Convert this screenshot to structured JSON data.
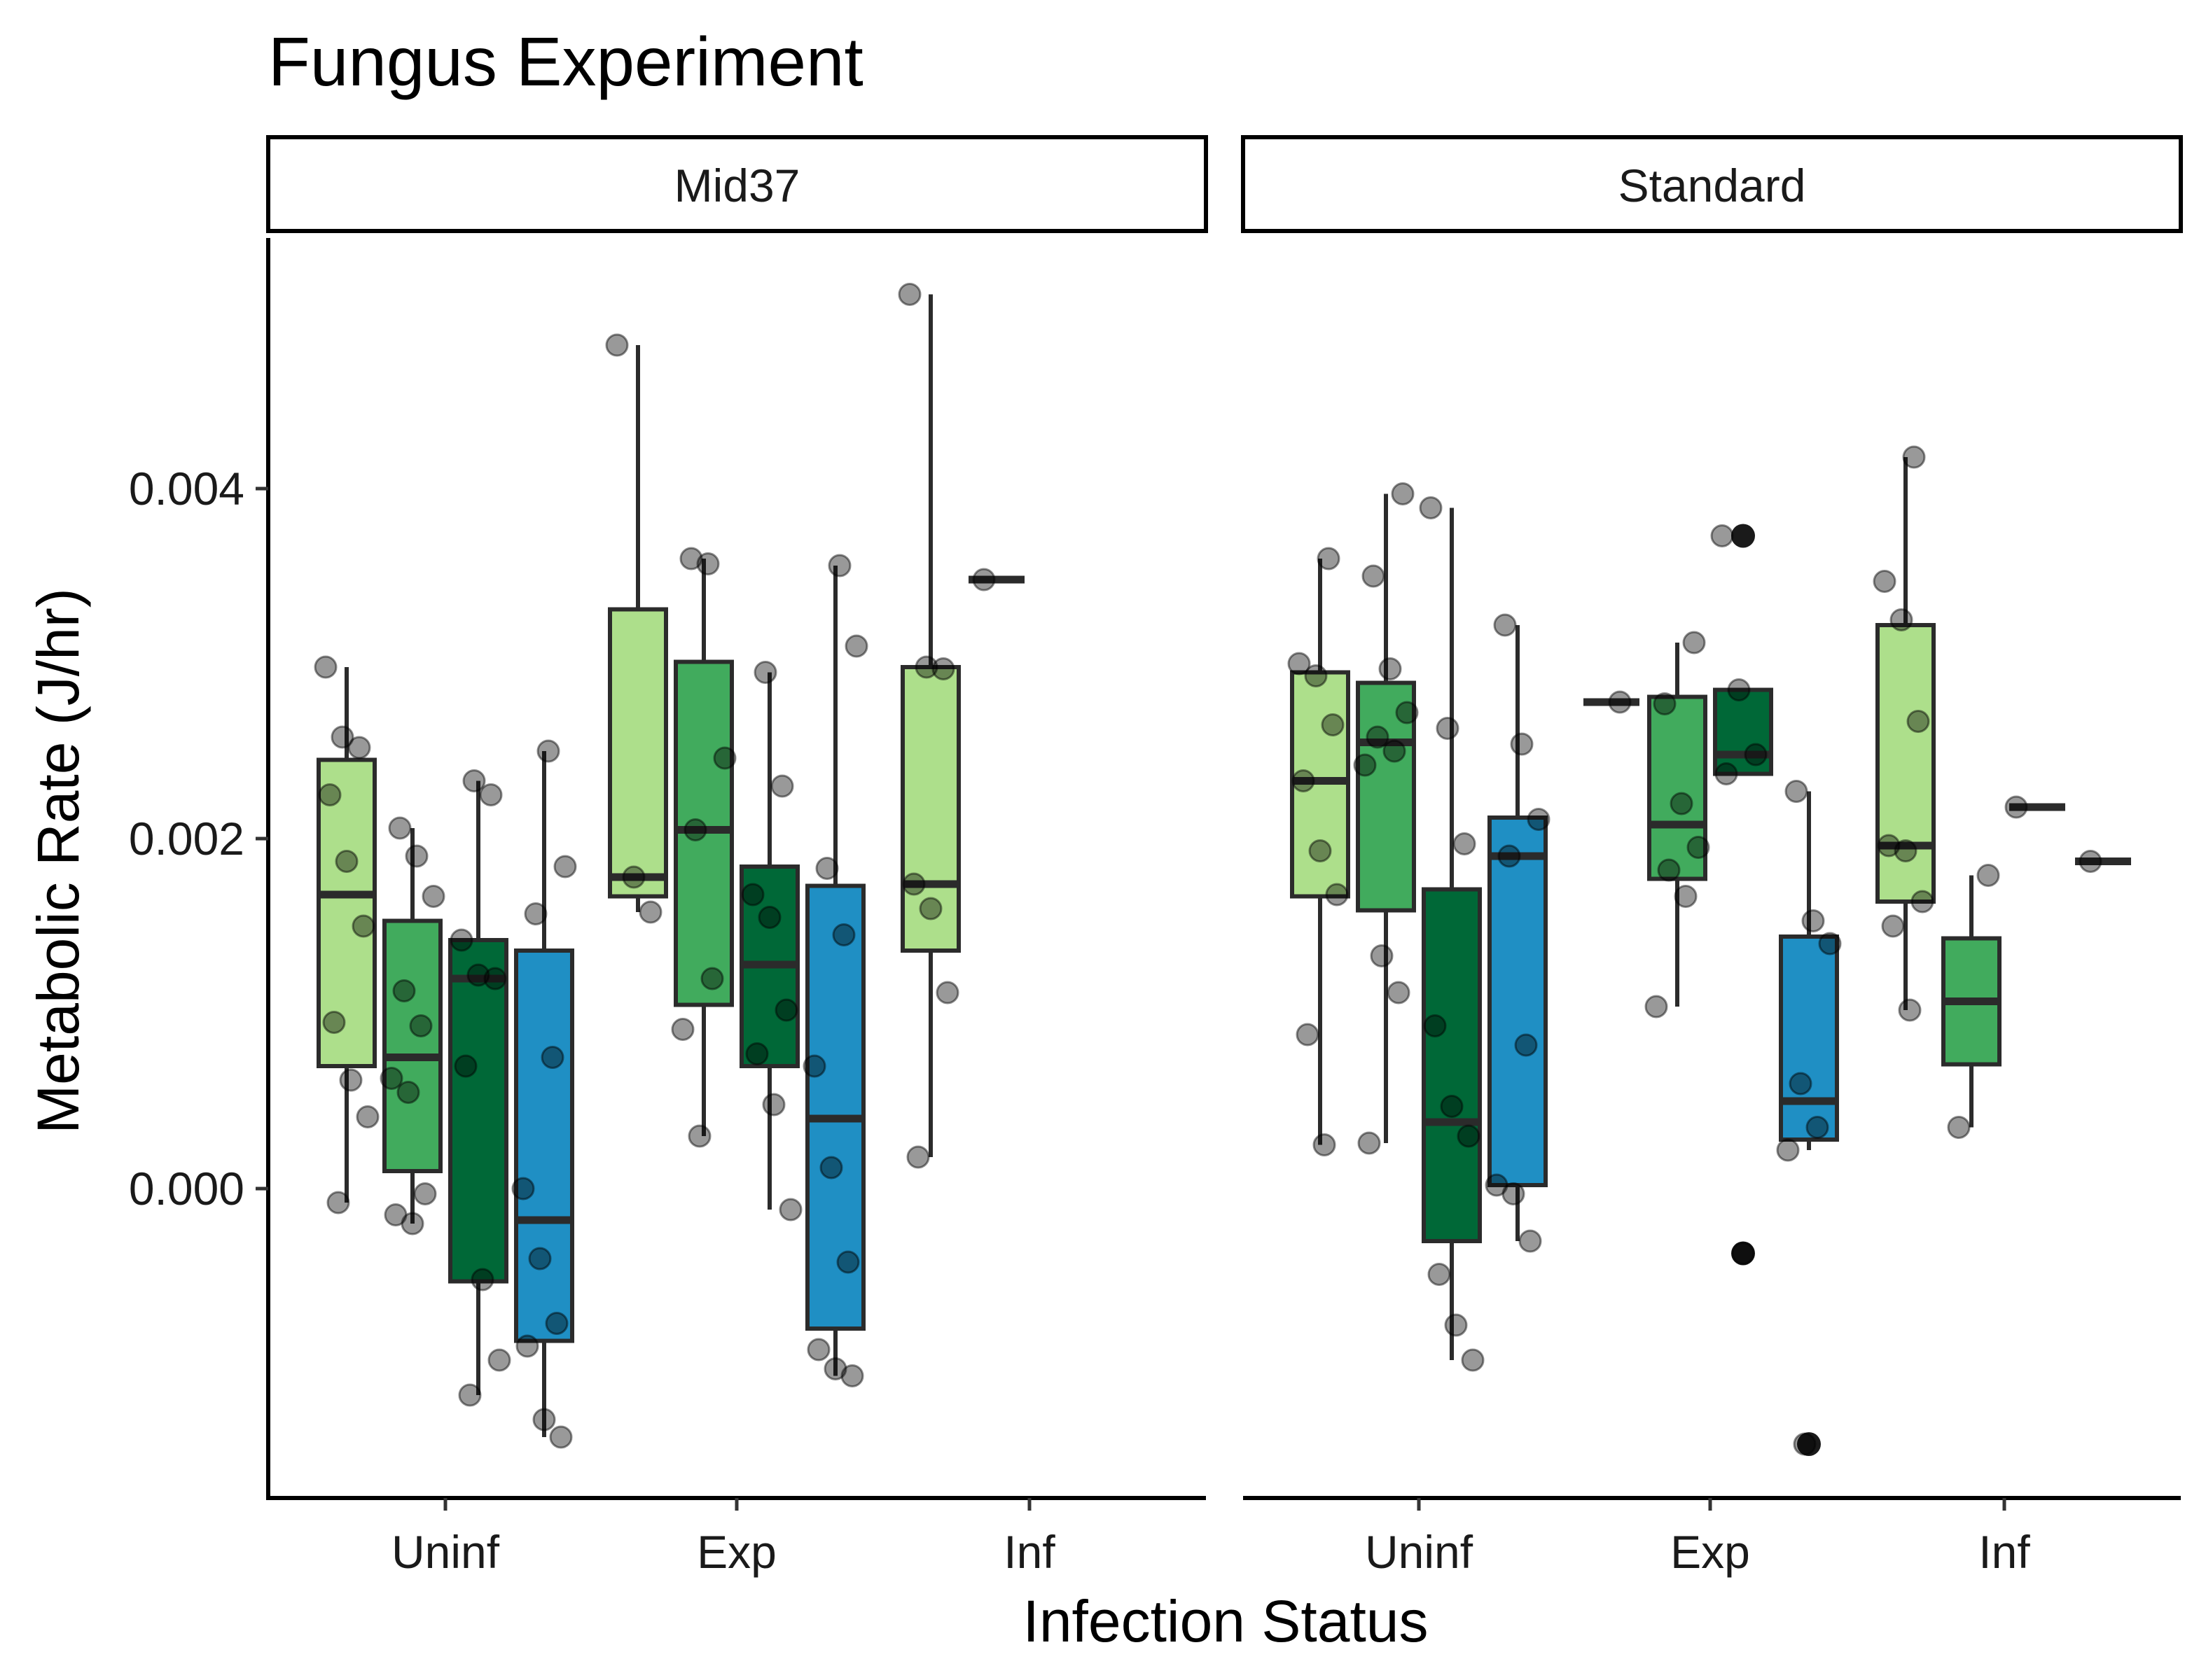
{
  "chart_data": {
    "type": "boxplot",
    "title": "Fungus Experiment",
    "xlabel": "Infection Status",
    "ylabel": "Metabolic Rate (J/hr)",
    "ylim": [
      -0.0018,
      0.0055
    ],
    "yticks": [
      0.0,
      0.002,
      0.004
    ],
    "ytick_labels": [
      "0.000",
      "0.002",
      "0.004"
    ],
    "categories": [
      "Uninf",
      "Exp",
      "Inf"
    ],
    "facets": [
      "Mid37",
      "Standard"
    ],
    "group_colors": [
      "#addf8b",
      "#41ab5d",
      "#006837",
      "#1f8fc4"
    ],
    "legend": "none",
    "grid": false,
    "panels": [
      {
        "name": "Mid37",
        "groups": [
          {
            "category": "Uninf",
            "boxes": [
              {
                "color_index": 0,
                "q1": 0.0007,
                "median": 0.00168,
                "q3": 0.00245,
                "whisker_low": -8e-05,
                "whisker_high": 0.00298,
                "outliers": [],
                "points": [
                  0.00298,
                  0.00258,
                  0.00252,
                  0.00225,
                  0.00187,
                  0.0015,
                  0.00095,
                  0.00062,
                  0.00041,
                  -8e-05
                ]
              },
              {
                "color_index": 1,
                "q1": 0.0001,
                "median": 0.00075,
                "q3": 0.00153,
                "whisker_low": -0.0002,
                "whisker_high": 0.00206,
                "outliers": [],
                "points": [
                  0.00206,
                  0.0019,
                  0.00167,
                  0.00113,
                  0.00093,
                  0.00063,
                  0.00055,
                  -3e-05,
                  -0.00015,
                  -0.0002
                ]
              },
              {
                "color_index": 2,
                "q1": -0.00053,
                "median": 0.0012,
                "q3": 0.00142,
                "whisker_low": -0.00118,
                "whisker_high": 0.00233,
                "outliers": [],
                "points": [
                  0.00233,
                  0.00225,
                  0.00142,
                  0.00122,
                  0.0012,
                  0.0007,
                  -0.00052,
                  -0.00098,
                  -0.00118
                ]
              },
              {
                "color_index": 3,
                "q1": -0.00087,
                "median": -0.00018,
                "q3": 0.00136,
                "whisker_low": -0.00142,
                "whisker_high": 0.0025,
                "outliers": [],
                "points": [
                  0.0025,
                  0.00184,
                  0.00157,
                  0.00075,
                  0.0,
                  -0.0004,
                  -0.00077,
                  -0.0009,
                  -0.00132,
                  -0.00142
                ]
              }
            ]
          },
          {
            "category": "Exp",
            "boxes": [
              {
                "color_index": 0,
                "q1": 0.00167,
                "median": 0.00178,
                "q3": 0.00331,
                "whisker_low": 0.00158,
                "whisker_high": 0.00482,
                "outliers": [],
                "points": [
                  0.00482,
                  0.00178,
                  0.00158
                ]
              },
              {
                "color_index": 1,
                "q1": 0.00105,
                "median": 0.00205,
                "q3": 0.00301,
                "whisker_low": 0.0003,
                "whisker_high": 0.0036,
                "outliers": [],
                "points": [
                  0.0036,
                  0.00357,
                  0.00246,
                  0.00205,
                  0.0012,
                  0.00091,
                  0.0003
                ]
              },
              {
                "color_index": 2,
                "q1": 0.0007,
                "median": 0.00128,
                "q3": 0.00184,
                "whisker_low": -0.00012,
                "whisker_high": 0.00295,
                "outliers": [],
                "points": [
                  0.00295,
                  0.0023,
                  0.00168,
                  0.00155,
                  0.00102,
                  0.00077,
                  0.00048,
                  -0.00012
                ]
              },
              {
                "color_index": 3,
                "q1": -0.0008,
                "median": 0.0004,
                "q3": 0.00173,
                "whisker_low": -0.00107,
                "whisker_high": 0.00356,
                "outliers": [],
                "points": [
                  0.00356,
                  0.0031,
                  0.00183,
                  0.00145,
                  0.0007,
                  0.00012,
                  -0.00042,
                  -0.00092,
                  -0.00103,
                  -0.00107
                ]
              }
            ]
          },
          {
            "category": "Inf",
            "boxes": [
              {
                "color_index": 0,
                "q1": 0.00136,
                "median": 0.00174,
                "q3": 0.00298,
                "whisker_low": 0.00018,
                "whisker_high": 0.00511,
                "outliers": [],
                "points": [
                  0.00511,
                  0.00298,
                  0.00297,
                  0.00174,
                  0.0016,
                  0.00112,
                  0.00018
                ]
              },
              {
                "color_index": 1,
                "q1": 0.00348,
                "median": 0.00348,
                "q3": 0.00348,
                "whisker_low": 0.00348,
                "whisker_high": 0.00348,
                "outliers": [],
                "points": [
                  0.00348
                ]
              }
            ]
          }
        ]
      },
      {
        "name": "Standard",
        "groups": [
          {
            "category": "Uninf",
            "boxes": [
              {
                "color_index": 0,
                "q1": 0.00167,
                "median": 0.00233,
                "q3": 0.00295,
                "whisker_low": 0.00025,
                "whisker_high": 0.0036,
                "outliers": [],
                "points": [
                  0.0036,
                  0.003,
                  0.00293,
                  0.00265,
                  0.00233,
                  0.00193,
                  0.00168,
                  0.00088,
                  0.00025
                ]
              },
              {
                "color_index": 1,
                "q1": 0.00159,
                "median": 0.00255,
                "q3": 0.00289,
                "whisker_low": 0.00026,
                "whisker_high": 0.00397,
                "outliers": [],
                "points": [
                  0.00397,
                  0.0035,
                  0.00297,
                  0.00272,
                  0.00258,
                  0.0025,
                  0.00242,
                  0.00133,
                  0.00112,
                  0.00026
                ]
              },
              {
                "color_index": 2,
                "q1": -0.0003,
                "median": 0.00038,
                "q3": 0.00171,
                "whisker_low": -0.00098,
                "whisker_high": 0.00389,
                "outliers": [],
                "points": [
                  0.00389,
                  0.00263,
                  0.00197,
                  0.00093,
                  0.00047,
                  0.0003,
                  -0.00049,
                  -0.00078,
                  -0.00098
                ]
              },
              {
                "color_index": 3,
                "q1": 2e-05,
                "median": 0.0019,
                "q3": 0.00212,
                "whisker_low": -0.0003,
                "whisker_high": 0.00322,
                "outliers": [],
                "points": [
                  0.00322,
                  0.00254,
                  0.00211,
                  0.0019,
                  0.00082,
                  2e-05,
                  -3e-05,
                  -0.0003
                ]
              }
            ]
          },
          {
            "category": "Exp",
            "boxes": [
              {
                "color_index": 0,
                "q1": 0.00278,
                "median": 0.00278,
                "q3": 0.00278,
                "whisker_low": 0.00278,
                "whisker_high": 0.00278,
                "outliers": [],
                "points": [
                  0.00278
                ]
              },
              {
                "color_index": 1,
                "q1": 0.00177,
                "median": 0.00208,
                "q3": 0.00281,
                "whisker_low": 0.00104,
                "whisker_high": 0.00312,
                "outliers": [],
                "points": [
                  0.00312,
                  0.00277,
                  0.0022,
                  0.00195,
                  0.00182,
                  0.00167,
                  0.00104
                ]
              },
              {
                "color_index": 2,
                "q1": 0.00237,
                "median": 0.00248,
                "q3": 0.00285,
                "whisker_low": 0.00237,
                "whisker_high": 0.00285,
                "outliers": [
                  0.00373,
                  -0.00037
                ],
                "points": [
                  0.00373,
                  0.00285,
                  0.00248,
                  0.00237,
                  -0.00037
                ]
              },
              {
                "color_index": 3,
                "q1": 0.00028,
                "median": 0.0005,
                "q3": 0.00144,
                "whisker_low": 0.00022,
                "whisker_high": 0.00227,
                "outliers": [
                  -0.00146
                ],
                "points": [
                  0.00227,
                  0.00153,
                  0.0014,
                  0.0006,
                  0.00035,
                  0.00022,
                  -0.00146
                ]
              }
            ]
          },
          {
            "category": "Inf",
            "boxes": [
              {
                "color_index": 0,
                "q1": 0.00164,
                "median": 0.00196,
                "q3": 0.00322,
                "whisker_low": 0.00102,
                "whisker_high": 0.00418,
                "outliers": [],
                "points": [
                  0.00418,
                  0.00347,
                  0.00325,
                  0.00267,
                  0.00196,
                  0.00193,
                  0.00164,
                  0.0015,
                  0.00102
                ]
              },
              {
                "color_index": 1,
                "q1": 0.00071,
                "median": 0.00107,
                "q3": 0.00143,
                "whisker_low": 0.00035,
                "whisker_high": 0.00179,
                "outliers": [],
                "points": [
                  0.00179,
                  0.00035
                ]
              },
              {
                "color_index": 2,
                "q1": 0.00218,
                "median": 0.00218,
                "q3": 0.00218,
                "whisker_low": 0.00218,
                "whisker_high": 0.00218,
                "outliers": [],
                "points": [
                  0.00218
                ]
              },
              {
                "color_index": 3,
                "q1": 0.00187,
                "median": 0.00187,
                "q3": 0.00187,
                "whisker_low": 0.00187,
                "whisker_high": 0.00187,
                "outliers": [],
                "points": [
                  0.00187
                ]
              }
            ]
          }
        ]
      }
    ]
  }
}
